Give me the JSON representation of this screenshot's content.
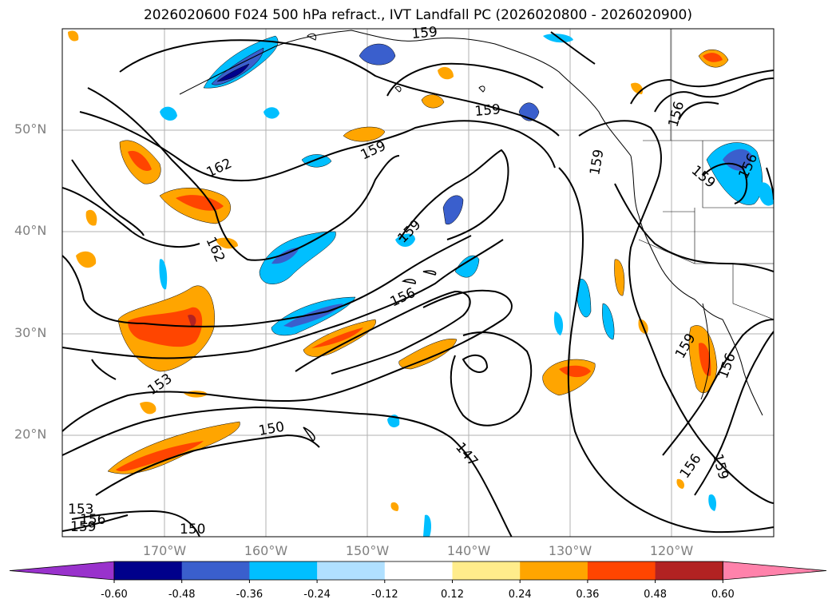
{
  "title": "2026020600 F024 500 hPa refract., IVT Landfall PC (2026020800 - 2026020900)",
  "lat_labels": [
    "50°N",
    "40°N",
    "30°N",
    "20°N"
  ],
  "lon_labels": [
    "170°W",
    "160°W",
    "150°W",
    "140°W",
    "130°W",
    "120°W"
  ],
  "contour_labels": [
    "159",
    "159",
    "162",
    "159",
    "156",
    "162",
    "159",
    "156",
    "159",
    "159",
    "156",
    "153",
    "150",
    "147",
    "156",
    "159",
    "153",
    "156",
    "159",
    "150",
    "159",
    "156"
  ],
  "colorbar": {
    "ticks": [
      "-0.60",
      "-0.48",
      "-0.36",
      "-0.24",
      "-0.12",
      "0.12",
      "0.24",
      "0.36",
      "0.48",
      "0.60"
    ],
    "colors": [
      "#9932cc",
      "#00008b",
      "#3a5fcd",
      "#00bfff",
      "#b0e0ff",
      "#ffffff",
      "#ffec8b",
      "#ffa500",
      "#ff4500",
      "#b22222",
      "#ff82ab"
    ]
  }
}
